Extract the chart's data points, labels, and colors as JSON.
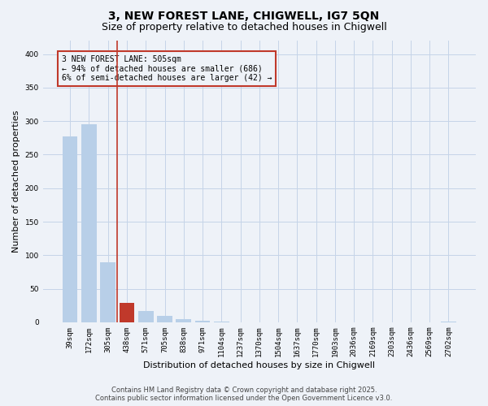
{
  "title": "3, NEW FOREST LANE, CHIGWELL, IG7 5QN",
  "subtitle": "Size of property relative to detached houses in Chigwell",
  "xlabel": "Distribution of detached houses by size in Chigwell",
  "ylabel": "Number of detached properties",
  "categories": [
    "39sqm",
    "172sqm",
    "305sqm",
    "438sqm",
    "571sqm",
    "705sqm",
    "838sqm",
    "971sqm",
    "1104sqm",
    "1237sqm",
    "1370sqm",
    "1504sqm",
    "1637sqm",
    "1770sqm",
    "1903sqm",
    "2036sqm",
    "2169sqm",
    "2303sqm",
    "2436sqm",
    "2569sqm",
    "2702sqm"
  ],
  "values": [
    277,
    295,
    90,
    29,
    17,
    10,
    5,
    2,
    1,
    0,
    0,
    0,
    0,
    0,
    0,
    0,
    0,
    0,
    0,
    0,
    1
  ],
  "bar_color": "#b8cfe8",
  "highlight_bar_index": 3,
  "highlight_bar_color": "#c0392b",
  "vline_index": 2.5,
  "vline_color": "#c0392b",
  "annotation_text": "3 NEW FOREST LANE: 505sqm\n← 94% of detached houses are smaller (686)\n6% of semi-detached houses are larger (42) →",
  "annotation_box_color": "#c0392b",
  "ylim": [
    0,
    420
  ],
  "yticks": [
    0,
    50,
    100,
    150,
    200,
    250,
    300,
    350,
    400
  ],
  "bg_color": "#eef2f8",
  "grid_color": "#c5d4e8",
  "footer": "Contains HM Land Registry data © Crown copyright and database right 2025.\nContains public sector information licensed under the Open Government Licence v3.0.",
  "title_fontsize": 10,
  "subtitle_fontsize": 9,
  "axis_label_fontsize": 8,
  "tick_fontsize": 6.5,
  "annotation_fontsize": 7,
  "footer_fontsize": 6
}
